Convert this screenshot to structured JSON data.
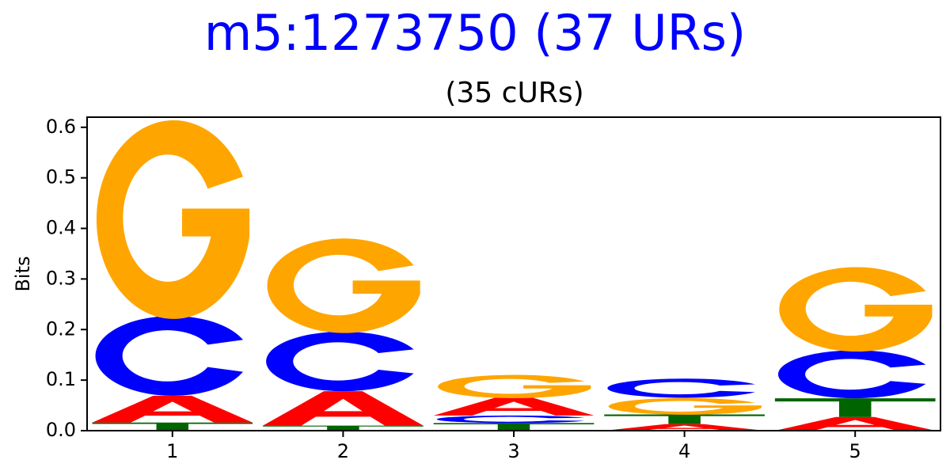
{
  "colors": {
    "A": "#ff0000",
    "C": "#0000ff",
    "G": "#ffa500",
    "T": "#006400",
    "title": "#0000ff"
  },
  "chart_data": {
    "type": "sequence-logo",
    "title": "m5:1273750 (37 URs)",
    "subtitle": "(35 cURs)",
    "xlabel": "",
    "ylabel": "Bits",
    "ylim": [
      0,
      0.62
    ],
    "yticks": [
      0.0,
      0.1,
      0.2,
      0.3,
      0.4,
      0.5,
      0.6
    ],
    "ytick_labels": [
      "0.0",
      "0.1",
      "0.2",
      "0.3",
      "0.4",
      "0.5",
      "0.6"
    ],
    "xticks": [
      1,
      2,
      3,
      4,
      5
    ],
    "xtick_labels": [
      "1",
      "2",
      "3",
      "4",
      "5"
    ],
    "grid": false,
    "positions": [
      {
        "pos": 1,
        "stack": [
          {
            "letter": "T",
            "bits": 0.016
          },
          {
            "letter": "A",
            "bits": 0.053
          },
          {
            "letter": "C",
            "bits": 0.158
          },
          {
            "letter": "G",
            "bits": 0.393
          }
        ]
      },
      {
        "pos": 2,
        "stack": [
          {
            "letter": "T",
            "bits": 0.01
          },
          {
            "letter": "A",
            "bits": 0.068
          },
          {
            "letter": "C",
            "bits": 0.118
          },
          {
            "letter": "G",
            "bits": 0.187
          }
        ]
      },
      {
        "pos": 3,
        "stack": [
          {
            "letter": "T",
            "bits": 0.015
          },
          {
            "letter": "C",
            "bits": 0.015
          },
          {
            "letter": "A",
            "bits": 0.035
          },
          {
            "letter": "G",
            "bits": 0.046
          }
        ]
      },
      {
        "pos": 4,
        "stack": [
          {
            "letter": "A",
            "bits": 0.013
          },
          {
            "letter": "T",
            "bits": 0.019
          },
          {
            "letter": "G",
            "bits": 0.033
          },
          {
            "letter": "C",
            "bits": 0.038
          }
        ]
      },
      {
        "pos": 5,
        "stack": [
          {
            "letter": "A",
            "bits": 0.027
          },
          {
            "letter": "T",
            "bits": 0.037
          },
          {
            "letter": "C",
            "bits": 0.095
          },
          {
            "letter": "G",
            "bits": 0.167
          }
        ]
      }
    ]
  }
}
